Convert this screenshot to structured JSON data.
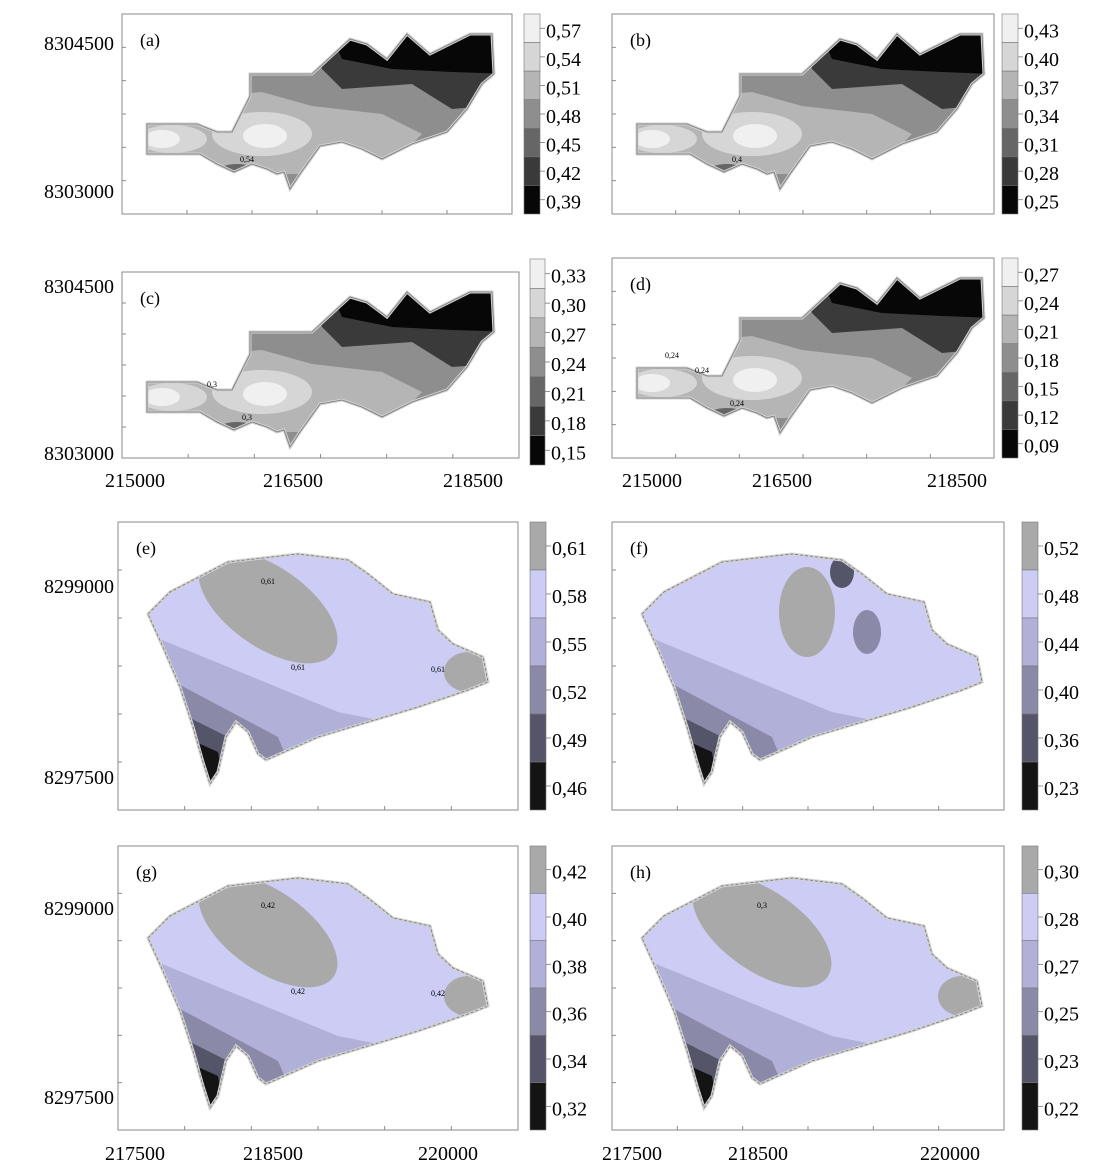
{
  "figure": {
    "axes": {
      "top_y_ticks": [
        "8304500",
        "8303000"
      ],
      "top_x_ticks": [
        "215000",
        "216500",
        "218500"
      ],
      "bottom_y_ticks": [
        "8299000",
        "8297500"
      ],
      "bottom_x_ticks": [
        "217500",
        "218500",
        "220000"
      ]
    }
  },
  "chart_data": [
    {
      "type": "heatmap",
      "panel_label": "(a)",
      "palette": "gray",
      "legend": [
        "0,57",
        "0,54",
        "0,51",
        "0,48",
        "0,45",
        "0,42",
        "0,39"
      ],
      "contour_labels": [
        "0,54"
      ],
      "colors": [
        "#f0f0f0",
        "#d6d6d6",
        "#b5b5b5",
        "#8e8e8e",
        "#666666",
        "#3a3a3a",
        "#070707"
      ]
    },
    {
      "type": "heatmap",
      "panel_label": "(b)",
      "palette": "gray",
      "legend": [
        "0,43",
        "0,40",
        "0,37",
        "0,34",
        "0,31",
        "0,28",
        "0,25"
      ],
      "contour_labels": [
        "0,4"
      ],
      "colors": [
        "#f0f0f0",
        "#d6d6d6",
        "#b5b5b5",
        "#8e8e8e",
        "#666666",
        "#3a3a3a",
        "#070707"
      ]
    },
    {
      "type": "heatmap",
      "panel_label": "(c)",
      "palette": "gray",
      "legend": [
        "0,33",
        "0,30",
        "0,27",
        "0,24",
        "0,21",
        "0,18",
        "0,15"
      ],
      "contour_labels": [
        "0,3",
        "0,3"
      ],
      "colors": [
        "#f0f0f0",
        "#d6d6d6",
        "#b5b5b5",
        "#8e8e8e",
        "#666666",
        "#3a3a3a",
        "#070707"
      ]
    },
    {
      "type": "heatmap",
      "panel_label": "(d)",
      "palette": "gray",
      "legend": [
        "0,27",
        "0,24",
        "0,21",
        "0,18",
        "0,15",
        "0,12",
        "0,09"
      ],
      "contour_labels": [
        "0,24",
        "0,24",
        "0,24"
      ],
      "colors": [
        "#f0f0f0",
        "#d6d6d6",
        "#b5b5b5",
        "#8e8e8e",
        "#666666",
        "#3a3a3a",
        "#070707"
      ]
    },
    {
      "type": "heatmap",
      "panel_label": "(e)",
      "palette": "lavender",
      "legend": [
        "0,61",
        "0,58",
        "0,55",
        "0,52",
        "0,49",
        "0,46"
      ],
      "contour_labels": [
        "0,61",
        "0,61",
        "0,61"
      ],
      "colors": [
        "#a9a9a9",
        "#ccccf5",
        "#b0b0d8",
        "#8a8aa8",
        "#55556a",
        "#141414"
      ]
    },
    {
      "type": "heatmap",
      "panel_label": "(f)",
      "palette": "lavender",
      "legend": [
        "0,52",
        "0,48",
        "0,44",
        "0,40",
        "0,36",
        "0,23"
      ],
      "contour_labels": [],
      "colors": [
        "#a9a9a9",
        "#ccccf5",
        "#b0b0d8",
        "#8a8aa8",
        "#55556a",
        "#141414"
      ]
    },
    {
      "type": "heatmap",
      "panel_label": "(g)",
      "palette": "lavender",
      "legend": [
        "0,42",
        "0,40",
        "0,38",
        "0,36",
        "0,34",
        "0,32"
      ],
      "contour_labels": [
        "0,42",
        "0,42",
        "0,42"
      ],
      "colors": [
        "#a9a9a9",
        "#ccccf5",
        "#b0b0d8",
        "#8a8aa8",
        "#55556a",
        "#141414"
      ]
    },
    {
      "type": "heatmap",
      "panel_label": "(h)",
      "palette": "lavender",
      "legend": [
        "0,30",
        "0,28",
        "0,27",
        "0,25",
        "0,23",
        "0,22"
      ],
      "contour_labels": [
        "0,3"
      ],
      "colors": [
        "#a9a9a9",
        "#ccccf5",
        "#b0b0d8",
        "#8a8aa8",
        "#55556a",
        "#141414"
      ]
    }
  ]
}
